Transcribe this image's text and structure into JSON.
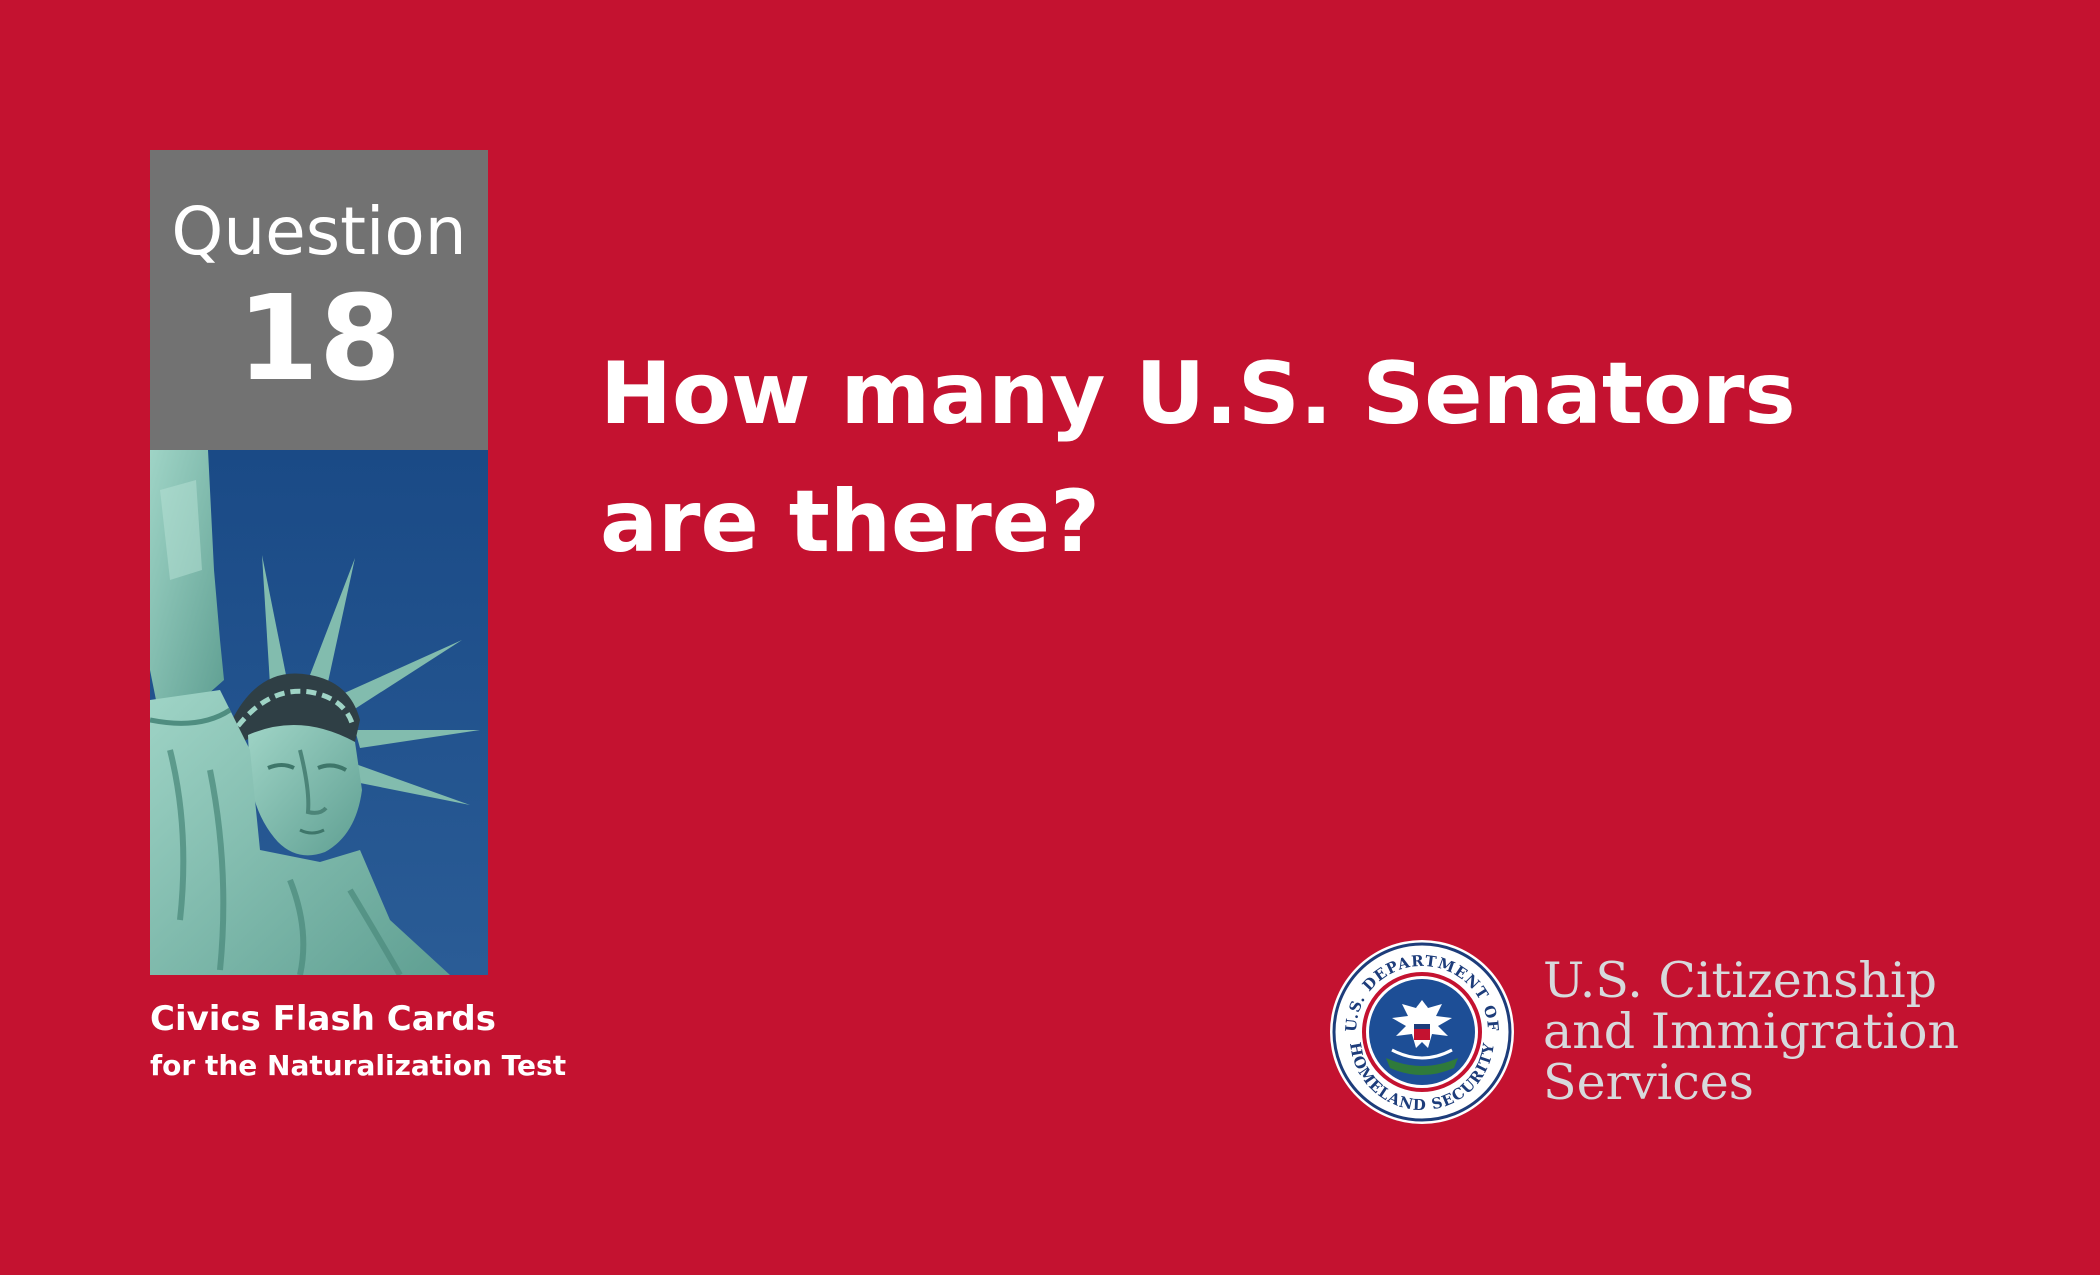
{
  "card": {
    "question_label": "Question",
    "question_number": "18",
    "question_lines": [
      "How many U.S. Senators",
      "are there?"
    ],
    "series_title": "Civics Flash Cards",
    "series_subtitle": "for the Naturalization Test",
    "photo": "statue-of-liberty"
  },
  "agency": {
    "name_lines": [
      "U.S. Citizenship",
      "and Immigration",
      "Services"
    ],
    "seal_text_top": "U.S. DEPARTMENT OF",
    "seal_text_bottom": "HOMELAND SECURITY",
    "seal_icon": "dhs-seal-icon"
  },
  "colors": {
    "background": "#c41230",
    "question_box": "#727272",
    "sky": "#1e4d85",
    "agency_text": "#d7d9dc",
    "text": "#ffffff"
  }
}
